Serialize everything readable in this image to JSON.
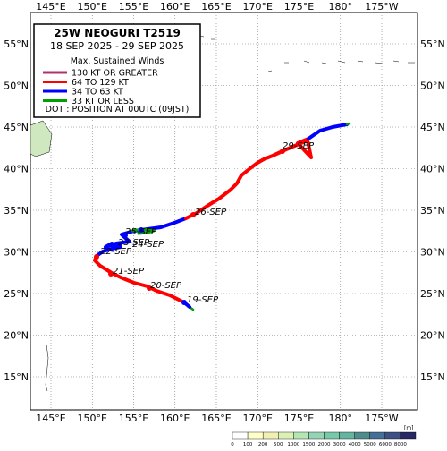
{
  "map": {
    "lon_labels": [
      "145°E",
      "150°E",
      "155°E",
      "160°E",
      "165°E",
      "170°E",
      "175°E",
      "180°",
      "175°W"
    ],
    "lat_labels": [
      "55°N",
      "50°N",
      "45°N",
      "40°N",
      "35°N",
      "30°N",
      "25°N",
      "20°N",
      "15°N"
    ],
    "legend": {
      "title": "25W  NEOGURI  T2519",
      "period": "18 SEP 2025 - 29 SEP 2025",
      "heading": "Max. Sustained Winds",
      "items": [
        {
          "label": "130 KT OR GREATER",
          "color": "#b03070"
        },
        {
          "label": "64 TO 129 KT",
          "color": "#ff0000"
        },
        {
          "label": "34 TO 63 KT",
          "color": "#0000ff"
        },
        {
          "label": "33 KT OR LESS",
          "color": "#00a000"
        }
      ],
      "note": "DOT : POSITION AT 00UTC (09JST)"
    },
    "date_labels": [
      "19-SEP",
      "20-SEP",
      "21-SEP",
      "22-SEP",
      "23-SEP",
      "24-SEP",
      "25-SEP",
      "26-SEP",
      "29-SEP"
    ],
    "scale": {
      "labels": [
        "0",
        "100",
        "200",
        "500",
        "1000",
        "1500",
        "2000",
        "3000",
        "4000",
        "5000",
        "6000",
        "8000"
      ],
      "unit": "[m]"
    }
  }
}
